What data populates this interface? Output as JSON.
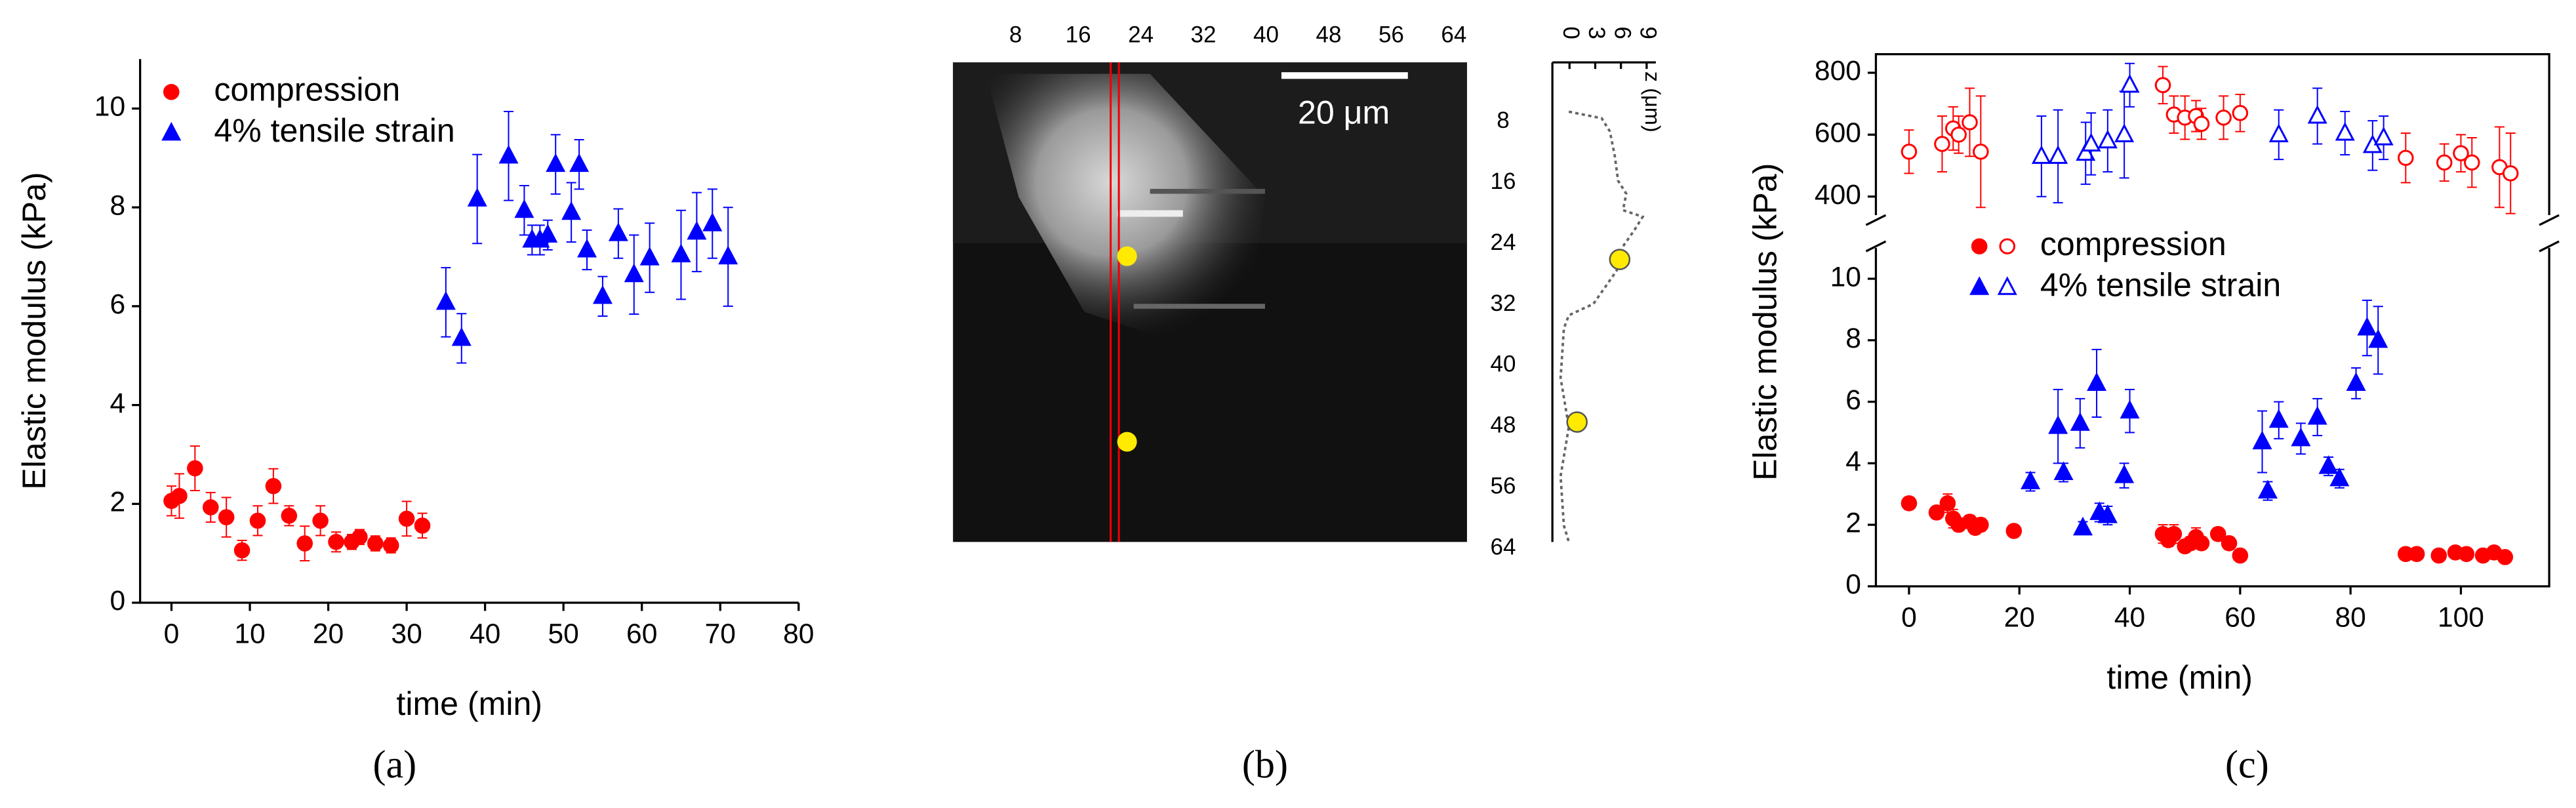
{
  "chart_data": [
    {
      "type": "scatter",
      "caption": "(a)",
      "xlabel": "time (min)",
      "ylabel": "Elastic modulus (kPa)",
      "xlim": [
        -4,
        80
      ],
      "ylim": [
        0,
        11
      ],
      "xticks": [
        0,
        10,
        20,
        30,
        40,
        50,
        60,
        70,
        80
      ],
      "yticks": [
        0,
        2,
        4,
        6,
        8,
        10
      ],
      "legend": "upper left",
      "series": [
        {
          "name": "compression",
          "color": "#ff0000",
          "marker": "circle",
          "x": [
            0,
            1,
            3,
            5,
            7,
            9,
            11,
            13,
            15,
            17,
            19,
            21,
            23,
            24,
            26,
            28,
            30,
            32
          ],
          "values": [
            2.06,
            2.16,
            2.72,
            1.93,
            1.73,
            1.06,
            1.66,
            2.36,
            1.76,
            1.2,
            1.66,
            1.23,
            1.23,
            1.33,
            1.2,
            1.16,
            1.7,
            1.56
          ],
          "errors": [
            0.3,
            0.45,
            0.45,
            0.3,
            0.4,
            0.2,
            0.3,
            0.35,
            0.2,
            0.35,
            0.3,
            0.2,
            0.15,
            0.15,
            0.15,
            0.15,
            0.35,
            0.25
          ]
        },
        {
          "name": "4% tensile strain",
          "color": "#0000ff",
          "marker": "triangle",
          "x": [
            35,
            37,
            39,
            43,
            45,
            46,
            47,
            48,
            49,
            51,
            52,
            53,
            55,
            57,
            59,
            61,
            65,
            67,
            69,
            71
          ],
          "values": [
            6.08,
            5.35,
            8.17,
            9.04,
            7.94,
            7.34,
            7.34,
            7.44,
            8.87,
            7.9,
            8.87,
            7.14,
            6.2,
            7.47,
            6.64,
            6.98,
            7.04,
            7.5,
            7.67,
            7.0
          ],
          "errors": [
            0.7,
            0.5,
            0.9,
            0.9,
            0.5,
            0.3,
            0.3,
            0.3,
            0.6,
            0.6,
            0.5,
            0.4,
            0.4,
            0.5,
            0.8,
            0.7,
            0.9,
            0.8,
            0.7,
            1.0
          ]
        }
      ]
    },
    {
      "type": "image",
      "caption": "(b)",
      "xlim": [
        0,
        64
      ],
      "ylim": [
        0,
        64
      ],
      "xticks": [
        8,
        16,
        24,
        32,
        40,
        48,
        56,
        64
      ],
      "yticks": [
        8,
        16,
        24,
        32,
        40,
        48,
        56,
        64
      ],
      "scale_bar": "20 μm",
      "profile_label": "z (μm)",
      "profile_lim": [
        -2,
        9.5
      ],
      "profile_ticks": [
        0,
        3,
        6,
        9
      ]
    },
    {
      "type": "scatter_broken",
      "caption": "(c)",
      "xlabel": "time (min)",
      "ylabel": "Elastic modulus (kPa)",
      "xlim": [
        -6,
        116
      ],
      "ylim": [
        0,
        11
      ],
      "y2lim": [
        340,
        860
      ],
      "xticks": [
        0,
        20,
        40,
        60,
        80,
        100
      ],
      "yticks": [
        0,
        2,
        4,
        6,
        8,
        10
      ],
      "y2ticks": [
        400,
        600,
        800
      ],
      "legend": "upper left",
      "series": [
        {
          "name": "compression",
          "color": "#ff0000",
          "marker": "circle",
          "x": [
            0,
            5,
            7,
            8,
            9,
            11,
            12,
            13,
            19,
            46,
            47,
            48,
            50,
            51,
            52,
            53,
            56,
            58,
            60,
            90,
            92,
            96,
            99,
            101,
            104,
            106,
            108
          ],
          "values": [
            2.7,
            2.4,
            2.7,
            2.2,
            2.0,
            2.1,
            1.9,
            2.0,
            1.8,
            1.7,
            1.5,
            1.7,
            1.3,
            1.4,
            1.6,
            1.4,
            1.7,
            1.4,
            1.0,
            1.05,
            1.05,
            1.0,
            1.1,
            1.05,
            1.0,
            1.1,
            0.95
          ],
          "errors": [
            0.2,
            0.2,
            0.3,
            0.3,
            0.2,
            0.2,
            0.2,
            0.2,
            0.15,
            0.3,
            0.2,
            0.3,
            0.2,
            0.2,
            0.3,
            0.2,
            0.2,
            0.2,
            0.15,
            0.15,
            0.15,
            0.1,
            0.1,
            0.15,
            0.1,
            0.15,
            0.15
          ],
          "x2": [
            0,
            6,
            8,
            9,
            11,
            13,
            46,
            48,
            50,
            52,
            53,
            57,
            60,
            90,
            97,
            100,
            102,
            107,
            109
          ],
          "values2": [
            545,
            570,
            620,
            600,
            640,
            545,
            760,
            665,
            655,
            660,
            635,
            655,
            670,
            525,
            510,
            540,
            510,
            495,
            475
          ],
          "errors2": [
            70,
            90,
            70,
            60,
            110,
            180,
            60,
            60,
            70,
            50,
            50,
            70,
            60,
            80,
            60,
            60,
            80,
            130,
            130
          ]
        },
        {
          "name": "4% tensile strain",
          "color": "#0000ff",
          "marker": "triangle",
          "x": [
            22,
            27,
            28,
            31,
            31.5,
            34,
            34.5,
            36,
            39,
            40,
            64,
            65,
            67,
            71,
            74,
            76,
            78,
            81,
            83,
            85
          ],
          "values": [
            3.4,
            5.2,
            3.7,
            5.3,
            1.9,
            6.6,
            2.4,
            2.3,
            3.6,
            5.7,
            4.7,
            3.1,
            5.4,
            4.8,
            5.5,
            3.9,
            3.5,
            6.6,
            8.4,
            8.0
          ],
          "errors": [
            0.3,
            1.2,
            0.3,
            0.8,
            0.2,
            1.1,
            0.3,
            0.3,
            0.4,
            0.7,
            1.0,
            0.3,
            0.6,
            0.5,
            0.6,
            0.3,
            0.3,
            0.5,
            0.9,
            1.1
          ],
          "x2": [
            24,
            27,
            32,
            33,
            36,
            39,
            40,
            67,
            74,
            79,
            84,
            86
          ],
          "values2": [
            530,
            530,
            540,
            570,
            580,
            600,
            760,
            600,
            660,
            605,
            565,
            590
          ],
          "errors2": [
            130,
            150,
            100,
            100,
            100,
            140,
            70,
            80,
            90,
            70,
            80,
            70
          ]
        }
      ]
    }
  ]
}
